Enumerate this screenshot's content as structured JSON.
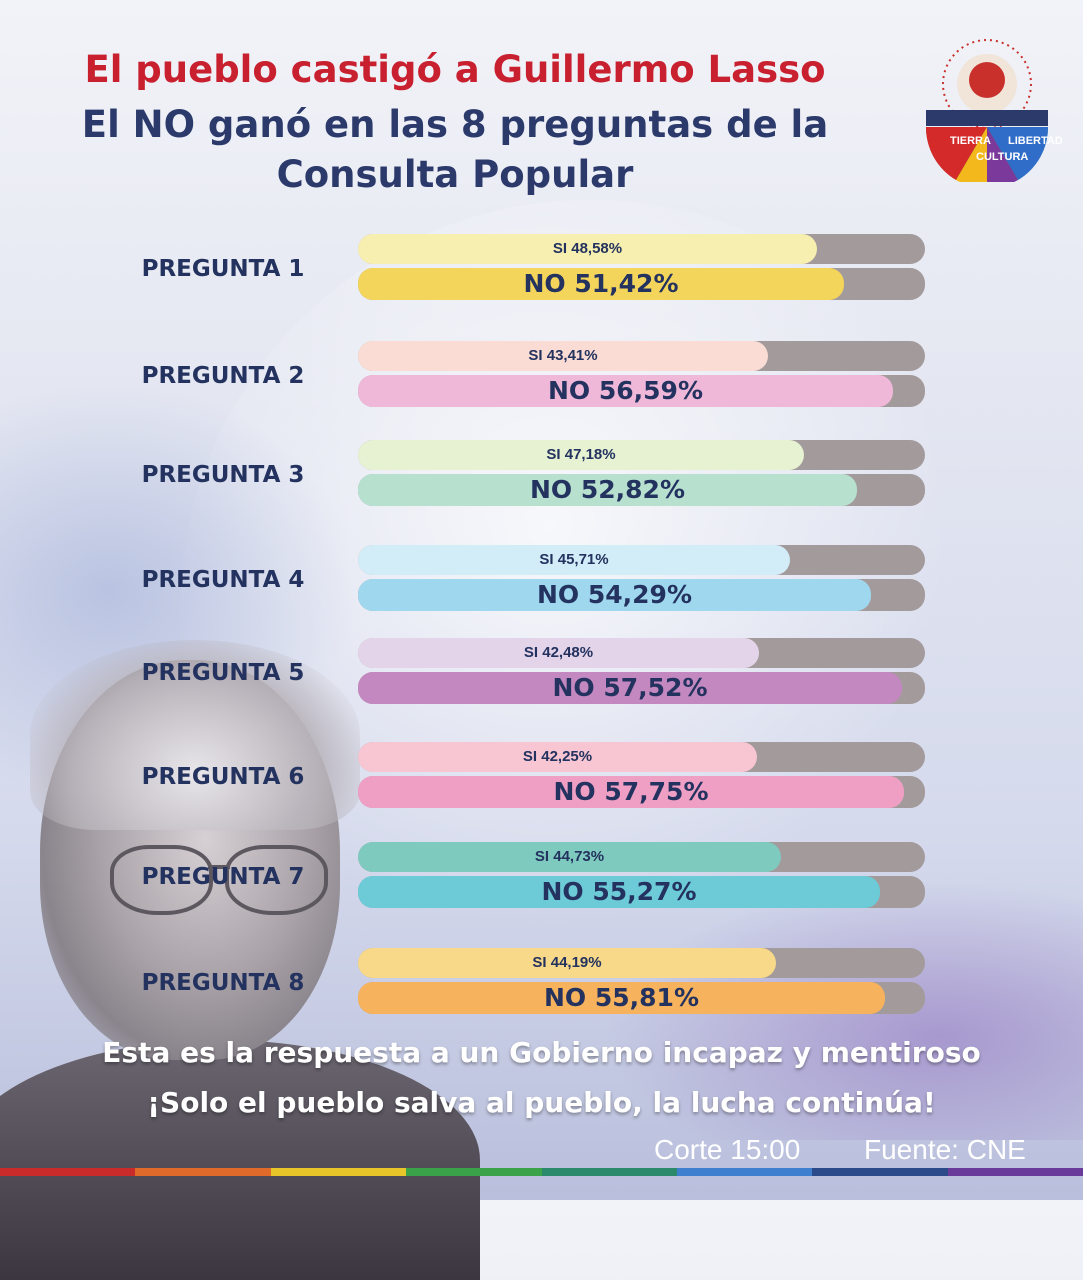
{
  "header": {
    "title_line1": "El pueblo castigó a Guillermo Lasso",
    "title_line2": "El NO ganó en las 8 preguntas de la",
    "title_line3": "Consulta Popular"
  },
  "logo": {
    "words": [
      "TIERRA",
      "CULTURA",
      "LIBERTAD"
    ],
    "colors": [
      "#d42a2a",
      "#f2b81c",
      "#3aa34a",
      "#2f6dc9",
      "#7b3a9b"
    ]
  },
  "chart_data": {
    "type": "bar",
    "orientation": "horizontal",
    "categories": [
      "PREGUNTA 1",
      "PREGUNTA 2",
      "PREGUNTA 3",
      "PREGUNTA 4",
      "PREGUNTA 5",
      "PREGUNTA 6",
      "PREGUNTA 7",
      "PREGUNTA 8"
    ],
    "series": [
      {
        "name": "SI",
        "values": [
          48.58,
          43.41,
          47.18,
          45.71,
          42.48,
          42.25,
          44.73,
          44.19
        ],
        "labels": [
          "SI 48,58%",
          "SI 43,41%",
          "SI 47,18%",
          "SI 45,71%",
          "SI 42,48%",
          "SI 42,25%",
          "SI 44,73%",
          "SI 44,19%"
        ]
      },
      {
        "name": "NO",
        "values": [
          51.42,
          56.59,
          52.82,
          54.29,
          57.52,
          57.75,
          55.27,
          55.81
        ],
        "labels": [
          "NO 51,42%",
          "NO 56,59%",
          "NO 52,82%",
          "NO 54,29%",
          "NO 57,52%",
          "NO 57,75%",
          "NO 55,27%",
          "NO 55,81%"
        ]
      }
    ],
    "colors": {
      "si": [
        "#f7efb0",
        "#fbdcd4",
        "#e6f2d2",
        "#d2ecf8",
        "#e4d4ea",
        "#f7c6d2",
        "#7fcabf",
        "#f8d98a"
      ],
      "no": [
        "#f3d55b",
        "#f0b8d8",
        "#b7e0cf",
        "#9fd8ee",
        "#c388c0",
        "#ef9fc4",
        "#6dcbd8",
        "#f7b25e"
      ],
      "track": "#a39a9b"
    },
    "xlim": [
      0,
      60
    ]
  },
  "footer": {
    "line1": "Esta es la respuesta a un Gobierno incapaz y mentiroso",
    "line2": "¡Solo el pueblo salva al pueblo, la lucha continúa!",
    "cutoff": "Corte 15:00",
    "source": "Fuente: CNE",
    "strip_colors": [
      "#c92a2a",
      "#e06a2a",
      "#e8c62a",
      "#3aa34a",
      "#2b8a6b",
      "#3f7fd0",
      "#2b4a8a",
      "#6a3a9b"
    ]
  }
}
